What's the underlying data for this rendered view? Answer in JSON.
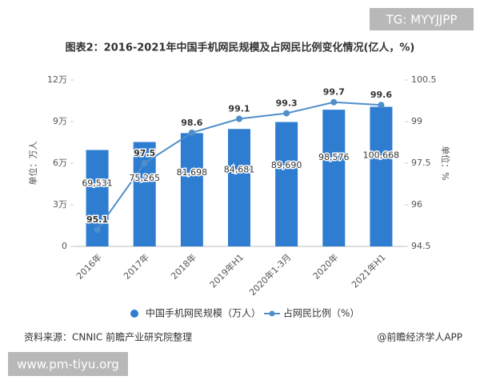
{
  "chart_data": {
    "type": "combo",
    "title": "图表2：2016-2021年中国手机网民规模及占网民比例变化情况(亿人，%)",
    "ylabel": "单位：万人",
    "y2label": "单位：%",
    "categories": [
      "2016年",
      "2017年",
      "2018年",
      "2019年H1",
      "2020年1-3月",
      "2020年",
      "2021年H1"
    ],
    "series": [
      {
        "name": "中国手机网民规模（万人）",
        "type": "bar",
        "color": "#2e7dd1",
        "values": [
          69531,
          75265,
          81698,
          84681,
          89690,
          98576,
          100668
        ],
        "value_labels": [
          "69,531",
          "75,265",
          "81,698",
          "84,681",
          "89,690",
          "98,576",
          "100,668"
        ]
      },
      {
        "name": "占网民比例（%）",
        "type": "line",
        "axis": "y2",
        "color": "#4f8fc9",
        "values": [
          95.1,
          97.5,
          98.6,
          99.1,
          99.3,
          99.7,
          99.6
        ]
      }
    ],
    "ylim": [
      0,
      120000
    ],
    "yticks": [
      0,
      {
        "value": 30000,
        "label": "3万"
      },
      {
        "value": 60000,
        "label": "6万"
      },
      {
        "value": 90000,
        "label": "9万"
      },
      {
        "value": 120000,
        "label": "12万"
      }
    ],
    "y2lim": [
      94.5,
      100.5
    ],
    "y2ticks": [
      94.5,
      96,
      97.5,
      99,
      100.5
    ],
    "source": "资料来源：CNNIC 前瞻产业研究院整理",
    "credit": "@前瞻经济学人APP"
  },
  "overlay": {
    "tag": "TG: MYYJJPP",
    "site": "www.pm-tiyu.org"
  }
}
